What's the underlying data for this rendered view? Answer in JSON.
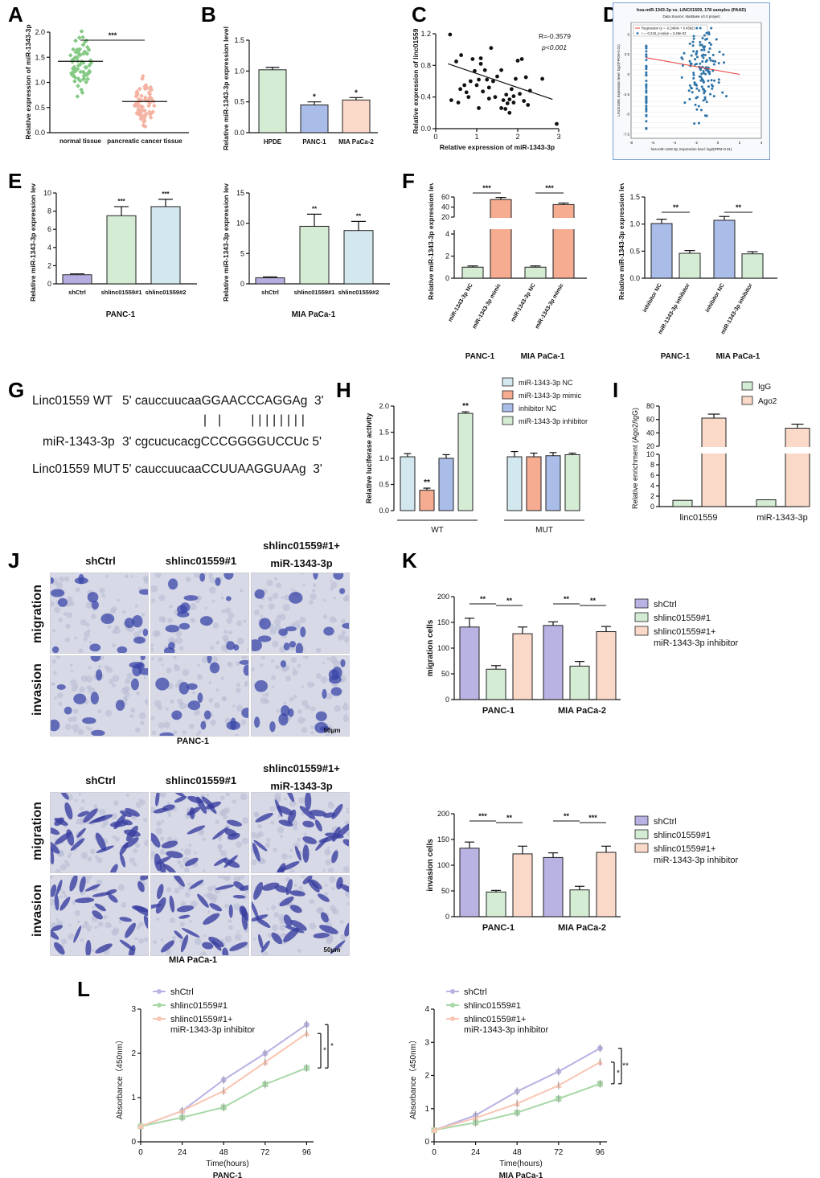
{
  "panel_labels": {
    "A": "A",
    "B": "B",
    "C": "C",
    "D": "D",
    "E": "E",
    "F": "F",
    "G": "G",
    "H": "H",
    "I": "I",
    "J": "J",
    "K": "K",
    "L": "L"
  },
  "colors": {
    "green": "#d4ecd4",
    "green_dark": "#57a957",
    "blue": "#a9bde8",
    "orange": "#f6ac91",
    "peach": "#fbd9c9",
    "lightblue": "#d2e8ee",
    "purple": "#b9b3e3",
    "grey": "#c9c9c9",
    "scatter_green": "#84c984",
    "scatter_pink": "#f5b2a2",
    "dot_blue": "#2b73a8",
    "reg_red": "#e53935"
  },
  "chart_data": [
    {
      "id": "A",
      "type": "scatter",
      "ylabel": "Relative expression of miR-1343-3p",
      "categories": [
        "normal tissue",
        "pancreatic cancer tissue"
      ],
      "means": [
        1.42,
        0.62
      ],
      "ylim": [
        0,
        2.0
      ],
      "yticks": [
        "0.0",
        "0.5",
        "1.0",
        "1.5",
        "2.0"
      ],
      "significance": "***"
    },
    {
      "id": "B",
      "type": "bar",
      "ylabel": "Relative miR-1343-3p expression level",
      "categories": [
        "HPDE",
        "PANC-1",
        "MIA PaCa-2"
      ],
      "values": [
        1.02,
        0.45,
        0.53
      ],
      "errors": [
        0.04,
        0.05,
        0.04
      ],
      "ylim": [
        0,
        1.5
      ],
      "yticks": [
        "0.0",
        "0.5",
        "1.0",
        "1.5"
      ],
      "significance": [
        "",
        "*",
        "*"
      ]
    },
    {
      "id": "C",
      "type": "scatter",
      "ylabel": "Relative expression of linc01559",
      "xlabel": "Relative expression of miR-1343-3p",
      "annotation_r": "R=-0.3579",
      "annotation_p": "p<0.001",
      "xlim": [
        0,
        3
      ],
      "ylim": [
        0,
        1.2
      ],
      "xticks": [
        "0",
        "1",
        "2",
        "3"
      ],
      "yticks": [
        "0.0",
        "0.4",
        "0.8",
        "1.2"
      ],
      "points": [
        [
          0.35,
          1.19
        ],
        [
          0.38,
          0.36
        ],
        [
          0.5,
          0.85
        ],
        [
          0.55,
          0.33
        ],
        [
          0.6,
          0.5
        ],
        [
          0.62,
          0.93
        ],
        [
          0.7,
          0.55
        ],
        [
          0.75,
          0.46
        ],
        [
          0.8,
          0.4
        ],
        [
          0.85,
          0.6
        ],
        [
          0.9,
          0.88
        ],
        [
          0.95,
          0.73
        ],
        [
          1.0,
          0.55
        ],
        [
          1.05,
          0.62
        ],
        [
          1.05,
          0.26
        ],
        [
          1.1,
          0.89
        ],
        [
          1.1,
          0.82
        ],
        [
          1.15,
          0.47
        ],
        [
          1.2,
          0.74
        ],
        [
          1.25,
          0.62
        ],
        [
          1.3,
          0.38
        ],
        [
          1.3,
          0.52
        ],
        [
          1.35,
          1.02
        ],
        [
          1.4,
          0.6
        ],
        [
          1.45,
          0.4
        ],
        [
          1.5,
          0.66
        ],
        [
          1.6,
          0.74
        ],
        [
          1.6,
          0.26
        ],
        [
          1.65,
          0.36
        ],
        [
          1.7,
          0.25
        ],
        [
          1.72,
          0.43
        ],
        [
          1.75,
          0.32
        ],
        [
          1.8,
          0.37
        ],
        [
          1.8,
          0.2
        ],
        [
          1.85,
          0.5
        ],
        [
          1.9,
          0.33
        ],
        [
          1.9,
          0.41
        ],
        [
          1.95,
          0.63
        ],
        [
          2.0,
          0.86
        ],
        [
          2.05,
          0.44
        ],
        [
          2.1,
          0.88
        ],
        [
          2.15,
          0.35
        ],
        [
          2.2,
          0.65
        ],
        [
          2.25,
          0.3
        ],
        [
          2.3,
          0.48
        ],
        [
          2.6,
          0.63
        ],
        [
          2.95,
          0.06
        ]
      ],
      "regression": [
        [
          0.3,
          0.82
        ],
        [
          2.85,
          0.37
        ]
      ]
    },
    {
      "id": "D",
      "type": "scatter",
      "title": "hsa-miR-1343-3p vs. LINC01559, 178 samples (PAAD)",
      "subtitle": "Data Source: starBase v3.0 project",
      "legend": [
        "Regression (y = -0.2484x + 0.4582)",
        "r = -0.218, p-value = 3.49e-03"
      ],
      "xlabel": "hsa-miR-1343-3p, Expression level: log2(RPM+0.01)",
      "ylabel": "LINC01559, Expression level: log2(FPKM+0.01)",
      "xticks": [
        "-8",
        "-6",
        "-4",
        "-2",
        "0",
        "2",
        "4"
      ],
      "yticks": [
        "-7.5",
        "-5",
        "-2.5",
        "0",
        "2.5",
        "5"
      ],
      "xlim": [
        -8,
        4
      ],
      "ylim": [
        -8,
        6.5
      ],
      "regression": [
        [
          -6.6,
          2.1
        ],
        [
          2,
          0.0
        ]
      ]
    },
    {
      "id": "E1",
      "type": "bar",
      "ylabel": "Relative miR-1343-3p expression level",
      "group_label": "PANC-1",
      "categories": [
        "shCtrl",
        "shlinc01559#1",
        "shlinc01559#2"
      ],
      "values": [
        1.0,
        7.5,
        8.5
      ],
      "errors": [
        0.1,
        1.0,
        0.8
      ],
      "ylim": [
        0,
        10
      ],
      "yticks": [
        "0",
        "2",
        "4",
        "6",
        "8",
        "10"
      ],
      "significance": [
        "",
        "***",
        "***"
      ]
    },
    {
      "id": "E2",
      "type": "bar",
      "ylabel": "Relative miR-1343-3p expression level",
      "group_label": "MIA PaCa-1",
      "categories": [
        "shCtrl",
        "shlinc01559#1",
        "shlinc01559#2"
      ],
      "values": [
        1.0,
        9.5,
        8.8
      ],
      "errors": [
        0.15,
        2.0,
        1.5
      ],
      "ylim": [
        0,
        15
      ],
      "yticks": [
        "0",
        "5",
        "10",
        "15"
      ],
      "significance": [
        "",
        "**",
        "**"
      ]
    },
    {
      "id": "F1",
      "type": "bar",
      "ylabel": "Relative miR-1343-3p expression level",
      "group_labels": [
        "PANC-1",
        "MIA PaCa-1"
      ],
      "categories": [
        "miR-1343-3p NC",
        "miR-1343-3p mimic",
        "miR-1343-3p NC",
        "miR-1343-3p mimic"
      ],
      "values": [
        1.0,
        55,
        1.0,
        45
      ],
      "errors": [
        0.05,
        4,
        0.05,
        3
      ],
      "yticks_lower": [
        "0",
        "2",
        "4"
      ],
      "yticks_upper": [
        "20",
        "40",
        "60"
      ],
      "significance": [
        "***",
        "***"
      ]
    },
    {
      "id": "F2",
      "type": "bar",
      "ylabel": "Relative miR-1343-3p expression level",
      "group_labels": [
        "PANC-1",
        "MIA PaCa-1"
      ],
      "categories": [
        "inhibitor NC",
        "miR-1343-3p inhibitor",
        "inhibitor NC",
        "miR-1343-3p inhibitor"
      ],
      "values": [
        1.01,
        0.46,
        1.07,
        0.45
      ],
      "errors": [
        0.08,
        0.05,
        0.07,
        0.04
      ],
      "ylim": [
        0,
        1.5
      ],
      "yticks": [
        "0.0",
        "0.5",
        "1.0",
        "1.5"
      ],
      "significance": [
        "**",
        "**"
      ]
    },
    {
      "id": "H",
      "type": "bar",
      "ylabel": "Relative luciferase activity",
      "legend": [
        "miR-1343-3p NC",
        "miR-1343-3p mimic",
        "inhibitor NC",
        "miR-1343-3p inhibitor"
      ],
      "group_labels": [
        "WT",
        "MUT"
      ],
      "values": [
        [
          1.03,
          0.39,
          1.0,
          1.86
        ],
        [
          1.03,
          1.03,
          1.05,
          1.07
        ]
      ],
      "errors": [
        [
          0.06,
          0.04,
          0.07,
          0.03
        ],
        [
          0.1,
          0.07,
          0.06,
          0.03
        ]
      ],
      "ylim": [
        0,
        2.0
      ],
      "yticks": [
        "0.0",
        "0.5",
        "1.0",
        "1.5",
        "2.0"
      ],
      "significance": [
        "**",
        "**"
      ]
    },
    {
      "id": "I",
      "type": "bar",
      "ylabel": "Relative enrichment (Ago2/IgG)",
      "legend": [
        "IgG",
        "Ago2"
      ],
      "categories": [
        "linc01559",
        "miR-1343-3p"
      ],
      "series": [
        {
          "name": "IgG",
          "values": [
            1.2,
            1.3
          ]
        },
        {
          "name": "Ago2",
          "values": [
            62,
            47
          ]
        }
      ],
      "yticks_lower": [
        "0",
        "2",
        "4",
        "6",
        "8",
        "10"
      ],
      "yticks_upper": [
        "20",
        "40",
        "60",
        "80"
      ]
    },
    {
      "id": "K1",
      "type": "bar",
      "ylabel": "migration cells",
      "group_labels": [
        "PANC-1",
        "MIA PaCa-2"
      ],
      "legend": [
        "shCtrl",
        "shlinc01559#1",
        "shlinc01559#1+ miR-1343-3p inhibitor"
      ],
      "values": [
        [
          141,
          59,
          128
        ],
        [
          144,
          65,
          132
        ]
      ],
      "errors": [
        [
          17,
          7,
          13
        ],
        [
          7,
          9,
          10
        ]
      ],
      "ylim": [
        0,
        200
      ],
      "yticks": [
        "0",
        "50",
        "100",
        "150",
        "200"
      ],
      "significance": [
        "**",
        "**",
        "**",
        "**"
      ]
    },
    {
      "id": "K2",
      "type": "bar",
      "ylabel": "invasion cells",
      "group_labels": [
        "PANC-1",
        "MIA PaCa-2"
      ],
      "legend": [
        "shCtrl",
        "shlinc01559#1",
        "shlinc01559#1+ miR-1343-3p inhibitor"
      ],
      "values": [
        [
          133,
          48,
          122
        ],
        [
          115,
          52,
          125
        ]
      ],
      "errors": [
        [
          12,
          3,
          15
        ],
        [
          9,
          7,
          12
        ]
      ],
      "ylim": [
        0,
        200
      ],
      "yticks": [
        "0",
        "50",
        "100",
        "150",
        "200"
      ],
      "significance": [
        "***",
        "**",
        "**",
        "***"
      ]
    },
    {
      "id": "L1",
      "type": "line",
      "xlabel": "Time(hours)",
      "ylabel": "Absorbance（450nm）",
      "group_label": "PANC-1",
      "x": [
        0,
        24,
        48,
        72,
        96
      ],
      "xticks": [
        "0",
        "24",
        "48",
        "72",
        "96"
      ],
      "ylim": [
        0,
        3
      ],
      "yticks": [
        "0",
        "1",
        "2",
        "3"
      ],
      "series": [
        {
          "name": "shCtrl",
          "values": [
            0.35,
            0.7,
            1.4,
            2.0,
            2.65
          ]
        },
        {
          "name": "shlinc01559#1",
          "values": [
            0.35,
            0.55,
            0.78,
            1.3,
            1.67
          ]
        },
        {
          "name": "shlinc01559#1+ miR-1343-3p inhibitor",
          "values": [
            0.35,
            0.7,
            1.15,
            1.8,
            2.45
          ]
        }
      ],
      "significance": [
        "*",
        "*"
      ]
    },
    {
      "id": "L2",
      "type": "line",
      "xlabel": "Time(hours)",
      "ylabel": "Absorbance（450nm）",
      "group_label": "MIA PaCa-1",
      "x": [
        0,
        24,
        48,
        72,
        96
      ],
      "xticks": [
        "0",
        "24",
        "48",
        "72",
        "96"
      ],
      "ylim": [
        0,
        4
      ],
      "yticks": [
        "0",
        "1",
        "2",
        "3",
        "4"
      ],
      "series": [
        {
          "name": "shCtrl",
          "values": [
            0.35,
            0.8,
            1.52,
            2.12,
            2.82
          ]
        },
        {
          "name": "shlinc01559#1",
          "values": [
            0.35,
            0.58,
            0.88,
            1.3,
            1.75
          ]
        },
        {
          "name": "shlinc01559#1+ miR-1343-3p inhibitor",
          "values": [
            0.35,
            0.72,
            1.15,
            1.7,
            2.4
          ]
        }
      ],
      "significance": [
        "*",
        "**"
      ]
    }
  ],
  "panel_G": {
    "wt_label": "Linc01559 WT",
    "wt_seq": "5' cauccuucaaGGAACCCAGGAg  3'",
    "mir_label": "miR-1343-3p",
    "mir_seq": "3' cgcucucacgCCCGGGGUCCUc 5'",
    "mut_label": "Linc01559 MUT",
    "mut_seq": "5' cauccuucaaCCUUAAGGUAAg  3'"
  },
  "panel_J": {
    "columns": [
      "shCtrl",
      "shlinc01559#1",
      "shlinc01559#1+\nmiR-1343-3p inhibitor"
    ],
    "rows": [
      "migration",
      "invasion"
    ],
    "cell_lines": [
      "PANC-1",
      "MIA PaCa-1"
    ],
    "scale_bar": "50μm"
  }
}
